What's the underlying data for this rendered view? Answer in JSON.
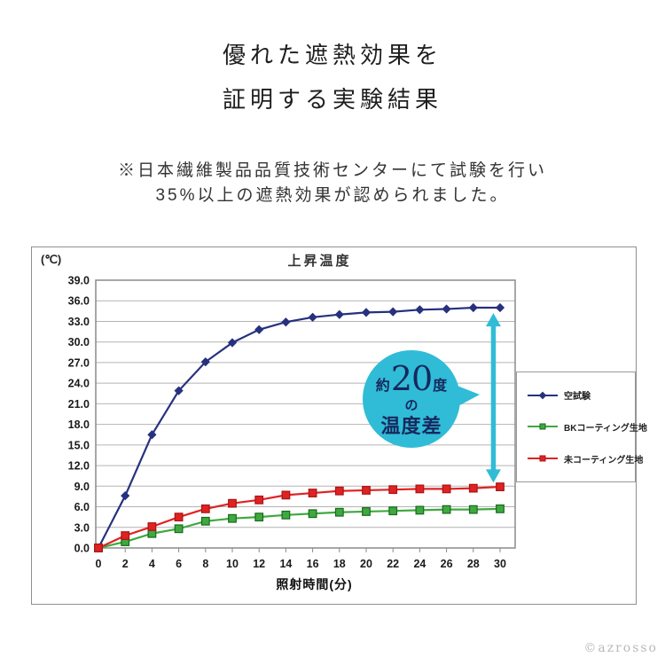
{
  "header": {
    "title_line1": "優れた遮熱効果を",
    "title_line2": "証明する実験結果",
    "note_line1": "※日本繊維製品品質技術センターにて試験を行い",
    "note_line2": "35%以上の遮熱効果が認められました。"
  },
  "chart_data": {
    "type": "line",
    "title": "上昇温度",
    "unit_label": "(℃)",
    "xlabel": "照射時間(分)",
    "x": [
      0,
      2,
      4,
      6,
      8,
      10,
      12,
      14,
      16,
      18,
      20,
      22,
      24,
      26,
      28,
      30
    ],
    "ylim": [
      0,
      39
    ],
    "ytick_step": 3,
    "grid": "horizontal",
    "legend_position": "right",
    "series": [
      {
        "name": "空試験",
        "color": "#27317e",
        "marker": "diamond",
        "marker_stroke": "#27317e",
        "values": [
          0.0,
          7.6,
          16.5,
          22.9,
          27.1,
          29.9,
          31.8,
          32.9,
          33.6,
          34.0,
          34.3,
          34.4,
          34.7,
          34.8,
          35.0,
          35.0
        ]
      },
      {
        "name": "BKコーティング生地",
        "color": "#3fa93f",
        "marker": "square",
        "marker_stroke": "#17691c",
        "values": [
          0.0,
          0.9,
          2.1,
          2.8,
          3.9,
          4.3,
          4.5,
          4.8,
          5.0,
          5.2,
          5.3,
          5.4,
          5.5,
          5.6,
          5.6,
          5.7
        ]
      },
      {
        "name": "未コーティング生地",
        "color": "#e02222",
        "marker": "square",
        "marker_stroke": "#a81414",
        "values": [
          0.0,
          1.8,
          3.1,
          4.5,
          5.7,
          6.5,
          7.0,
          7.7,
          8.0,
          8.3,
          8.4,
          8.5,
          8.6,
          8.6,
          8.7,
          8.9
        ]
      }
    ],
    "annotation": {
      "line1_small_left": "約",
      "line1_big": "20",
      "line1_small_right": "度",
      "line2": "の",
      "line3": "温度差",
      "bubble_color": "#30bcd6",
      "text_color": "#17285f",
      "arrow": {
        "x": 29.5,
        "y_top": 34.2,
        "y_bottom": 9.5
      }
    }
  },
  "footer": {
    "credit": "©azrosso"
  }
}
